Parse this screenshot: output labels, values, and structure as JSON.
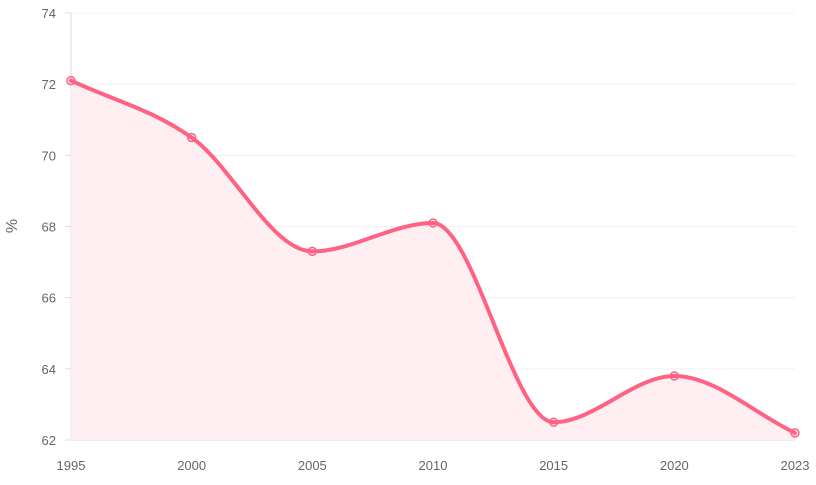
{
  "chart_data": {
    "type": "area",
    "categories": [
      "1995",
      "2000",
      "2005",
      "2010",
      "2015",
      "2020",
      "2023"
    ],
    "series": [
      {
        "values": [
          72.1,
          70.5,
          67.3,
          68.1,
          62.5,
          63.8,
          62.2
        ]
      }
    ],
    "ylabel": "%",
    "xlabel": "",
    "title": "",
    "ylim": [
      62,
      74
    ],
    "yticks": [
      "62",
      "64",
      "66",
      "68",
      "70",
      "72",
      "74"
    ],
    "grid": true,
    "legend": "none",
    "colors": {
      "line": "#ff6384",
      "fill": "#ffeef2",
      "grid": "#f0f0f0",
      "axis": "#dcdcdc",
      "text": "#666666"
    }
  }
}
